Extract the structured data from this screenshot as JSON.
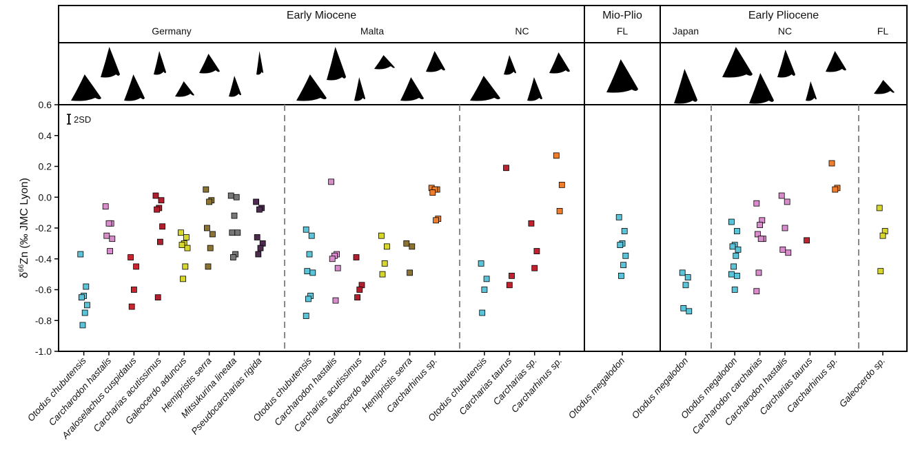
{
  "chart_data": {
    "type": "strip",
    "y_label": {
      "prefix": "δ",
      "superscript": "66",
      "suffix": "Zn (‰ JMC Lyon)"
    },
    "annotation": "2SD",
    "ylim": [
      -1,
      0.6
    ],
    "yticks": [
      {
        "value": -1,
        "label": "-1.0"
      },
      -0.8,
      -0.6,
      -0.4,
      -0.2,
      {
        "value": 0,
        "label": "0.0"
      },
      0.2,
      0.4,
      0.6
    ],
    "panels": [
      {
        "title": "Early Miocene",
        "regions": [
          {
            "name": "Germany",
            "groups": [
              {
                "label": "Otodus chubutensis",
                "color": "#5bc4d8",
                "values": [
                  -0.37,
                  -0.58,
                  -0.64,
                  -0.65,
                  -0.7,
                  -0.75,
                  -0.83
                ]
              },
              {
                "label": "Carcharodon hastalis",
                "color": "#d98ccc",
                "values": [
                  -0.06,
                  -0.17,
                  -0.17,
                  -0.25,
                  -0.27,
                  -0.35
                ]
              },
              {
                "label": "Araloselachus cuspidatus",
                "color": "#c9252f",
                "values": [
                  -0.39,
                  -0.45,
                  -0.6,
                  -0.71
                ]
              },
              {
                "label": "Carcharias acutissimus",
                "color": "#b11f2e",
                "values": [
                  0.01,
                  -0.02,
                  -0.07,
                  -0.08,
                  -0.19,
                  -0.29,
                  -0.65
                ]
              },
              {
                "label": "Galeocerdo aduncus",
                "color": "#d7d62c",
                "values": [
                  -0.23,
                  -0.26,
                  -0.3,
                  -0.31,
                  -0.33,
                  -0.45,
                  -0.53
                ]
              },
              {
                "label": "Hemipristis serra",
                "color": "#8b7332",
                "values": [
                  0.05,
                  -0.02,
                  -0.03,
                  -0.2,
                  -0.24,
                  -0.33,
                  -0.45
                ]
              },
              {
                "label": "Mitsukurina lineata",
                "color": "#777777",
                "values": [
                  0.01,
                  0.0,
                  -0.12,
                  -0.23,
                  -0.23,
                  -0.37,
                  -0.39
                ]
              },
              {
                "label": "Pseudocarcharias rigida",
                "color": "#4d2b4f",
                "values": [
                  -0.03,
                  -0.07,
                  -0.08,
                  -0.26,
                  -0.3,
                  -0.33,
                  -0.37
                ]
              }
            ]
          },
          {
            "name": "Malta",
            "groups": [
              {
                "label": "Otodus chubutensis",
                "color": "#5bc4d8",
                "values": [
                  -0.21,
                  -0.25,
                  -0.37,
                  -0.48,
                  -0.49,
                  -0.64,
                  -0.66,
                  -0.77
                ]
              },
              {
                "label": "Carcharodon hastalis",
                "color": "#d98ccc",
                "values": [
                  0.1,
                  -0.37,
                  -0.38,
                  -0.4,
                  -0.46,
                  -0.67
                ]
              },
              {
                "label": "Carcharias acutissimus",
                "color": "#b11f2e",
                "values": [
                  -0.39,
                  -0.57,
                  -0.6,
                  -0.65
                ]
              },
              {
                "label": "Galeocerdo aduncus",
                "color": "#d7d62c",
                "values": [
                  -0.25,
                  -0.32,
                  -0.43,
                  -0.5
                ]
              },
              {
                "label": "Hemipristis serra",
                "color": "#8b7332",
                "values": [
                  -0.3,
                  -0.32,
                  -0.49
                ]
              },
              {
                "label": "Carcharhinus sp.",
                "color": "#f07d2b",
                "values": [
                  0.06,
                  0.05,
                  0.05,
                  0.03,
                  -0.14,
                  -0.15
                ]
              }
            ]
          },
          {
            "name": "NC",
            "groups": [
              {
                "label": "Otodus chubutensis",
                "color": "#5bc4d8",
                "values": [
                  -0.43,
                  -0.53,
                  -0.6,
                  -0.75
                ]
              },
              {
                "label": "Carcharias taurus",
                "color": "#c0222f",
                "values": [
                  0.19,
                  -0.51,
                  -0.57
                ]
              },
              {
                "label": "Carcharias sp.",
                "color": "#c0222f",
                "values": [
                  -0.17,
                  -0.35,
                  -0.46
                ]
              },
              {
                "label": "Carcharhinus sp.",
                "color": "#f07d2b",
                "values": [
                  0.27,
                  0.08,
                  -0.09
                ]
              }
            ]
          }
        ]
      },
      {
        "title": "Mio-Plio",
        "regions": [
          {
            "name": "FL",
            "groups": [
              {
                "label": "Otodus megalodon",
                "color": "#5bc4d8",
                "values": [
                  -0.13,
                  -0.22,
                  -0.3,
                  -0.31,
                  -0.38,
                  -0.44,
                  -0.51
                ]
              }
            ]
          }
        ]
      },
      {
        "title": "Early Pliocene",
        "regions": [
          {
            "name": "Japan",
            "groups": [
              {
                "label": "Otodus megalodon",
                "color": "#5bc4d8",
                "values": [
                  -0.49,
                  -0.52,
                  -0.57,
                  -0.72,
                  -0.74
                ]
              }
            ]
          },
          {
            "name": "NC",
            "groups": [
              {
                "label": "Otodus megalodon",
                "color": "#5bc4d8",
                "values": [
                  -0.16,
                  -0.22,
                  -0.31,
                  -0.32,
                  -0.34,
                  -0.38,
                  -0.45,
                  -0.5,
                  -0.51,
                  -0.6
                ]
              },
              {
                "label": "Carcharodon carcharias",
                "color": "#d98ccc",
                "values": [
                  -0.04,
                  -0.15,
                  -0.18,
                  -0.24,
                  -0.27,
                  -0.27,
                  -0.49,
                  -0.61
                ]
              },
              {
                "label": "Carcharodon hastalis",
                "color": "#d98ccc",
                "values": [
                  0.01,
                  -0.03,
                  -0.2,
                  -0.34,
                  -0.36
                ]
              },
              {
                "label": "Carcharias taurus",
                "color": "#c0222f",
                "values": [
                  -0.28
                ]
              },
              {
                "label": "Carcharhinus sp.",
                "color": "#f07d2b",
                "values": [
                  0.22,
                  0.06,
                  0.05
                ]
              }
            ]
          },
          {
            "name": "FL",
            "groups": [
              {
                "label": "Galeocerdo sp.",
                "color": "#d7d62c",
                "values": [
                  -0.07,
                  -0.22,
                  -0.25,
                  -0.48
                ]
              }
            ]
          }
        ]
      }
    ]
  }
}
